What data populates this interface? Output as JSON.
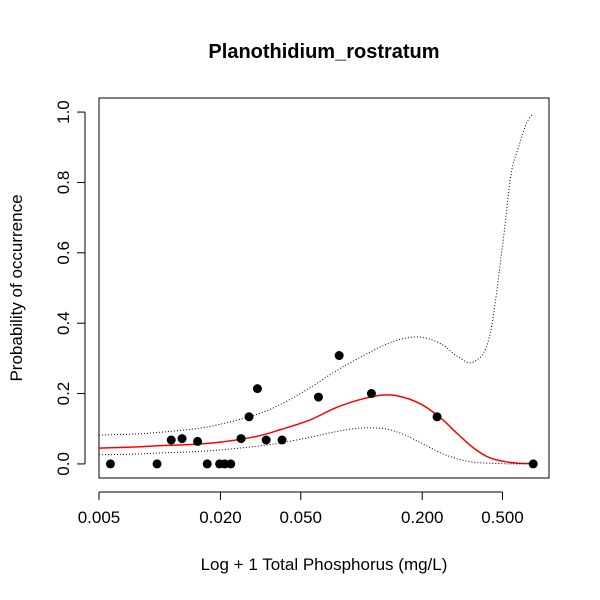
{
  "chart_data": {
    "type": "scatter",
    "title": "Planothidium_rostratum",
    "xlabel": "Log + 1 Total Phosphorus (mg/L)",
    "ylabel": "Probability of occurrence",
    "x_scale": "log",
    "xlim": [
      0.005,
      0.85
    ],
    "ylim": [
      -0.04,
      1.04
    ],
    "x_ticks": [
      0.005,
      0.02,
      0.05,
      0.2,
      0.5
    ],
    "x_tick_labels": [
      "0.005",
      "0.020",
      "0.050",
      "0.200",
      "0.500"
    ],
    "y_ticks": [
      0.0,
      0.2,
      0.4,
      0.6,
      0.8,
      1.0
    ],
    "y_tick_labels": [
      "0.0",
      "0.2",
      "0.4",
      "0.6",
      "0.8",
      "1.0"
    ],
    "grid": false,
    "colors": {
      "points": "#000000",
      "fit": "#ff0000",
      "bounds": "#000000"
    },
    "points": [
      {
        "x": 0.0057,
        "y": 0.0
      },
      {
        "x": 0.0097,
        "y": 0.0
      },
      {
        "x": 0.0114,
        "y": 0.068
      },
      {
        "x": 0.0129,
        "y": 0.072
      },
      {
        "x": 0.0154,
        "y": 0.064
      },
      {
        "x": 0.0172,
        "y": 0.0
      },
      {
        "x": 0.0198,
        "y": 0.0
      },
      {
        "x": 0.021,
        "y": 0.0
      },
      {
        "x": 0.0225,
        "y": 0.0
      },
      {
        "x": 0.0253,
        "y": 0.072
      },
      {
        "x": 0.0277,
        "y": 0.134
      },
      {
        "x": 0.0305,
        "y": 0.214
      },
      {
        "x": 0.0337,
        "y": 0.068
      },
      {
        "x": 0.0404,
        "y": 0.068
      },
      {
        "x": 0.0612,
        "y": 0.19
      },
      {
        "x": 0.0775,
        "y": 0.308
      },
      {
        "x": 0.112,
        "y": 0.2
      },
      {
        "x": 0.237,
        "y": 0.134
      },
      {
        "x": 0.71,
        "y": 0.0
      }
    ],
    "series": [
      {
        "style": "solid",
        "x": [
          0.005,
          0.0075,
          0.01,
          0.015,
          0.02,
          0.03,
          0.04,
          0.055,
          0.075,
          0.1,
          0.13,
          0.16,
          0.2,
          0.25,
          0.3,
          0.36,
          0.43,
          0.52,
          0.6,
          0.71
        ],
        "y": [
          0.045,
          0.048,
          0.052,
          0.056,
          0.062,
          0.078,
          0.098,
          0.124,
          0.16,
          0.184,
          0.196,
          0.19,
          0.168,
          0.128,
          0.085,
          0.045,
          0.018,
          0.006,
          0.002,
          0.001
        ]
      },
      {
        "style": "dotted",
        "x": [
          0.005,
          0.0075,
          0.01,
          0.015,
          0.02,
          0.03,
          0.04,
          0.055,
          0.075,
          0.1,
          0.13,
          0.16,
          0.2,
          0.25,
          0.3,
          0.36,
          0.43,
          0.5,
          0.55,
          0.6,
          0.66,
          0.71
        ],
        "y": [
          0.082,
          0.085,
          0.09,
          0.1,
          0.113,
          0.14,
          0.17,
          0.215,
          0.265,
          0.305,
          0.338,
          0.356,
          0.36,
          0.34,
          0.305,
          0.29,
          0.36,
          0.62,
          0.82,
          0.9,
          0.97,
          0.995
        ]
      },
      {
        "style": "dotted",
        "x": [
          0.005,
          0.0075,
          0.01,
          0.015,
          0.02,
          0.03,
          0.04,
          0.055,
          0.075,
          0.1,
          0.13,
          0.16,
          0.2,
          0.25,
          0.3,
          0.36,
          0.43,
          0.52,
          0.6,
          0.71
        ],
        "y": [
          0.026,
          0.028,
          0.031,
          0.035,
          0.04,
          0.05,
          0.06,
          0.075,
          0.092,
          0.102,
          0.1,
          0.085,
          0.058,
          0.03,
          0.014,
          0.005,
          0.002,
          0.0005,
          0.0001,
          0.0
        ]
      }
    ]
  }
}
